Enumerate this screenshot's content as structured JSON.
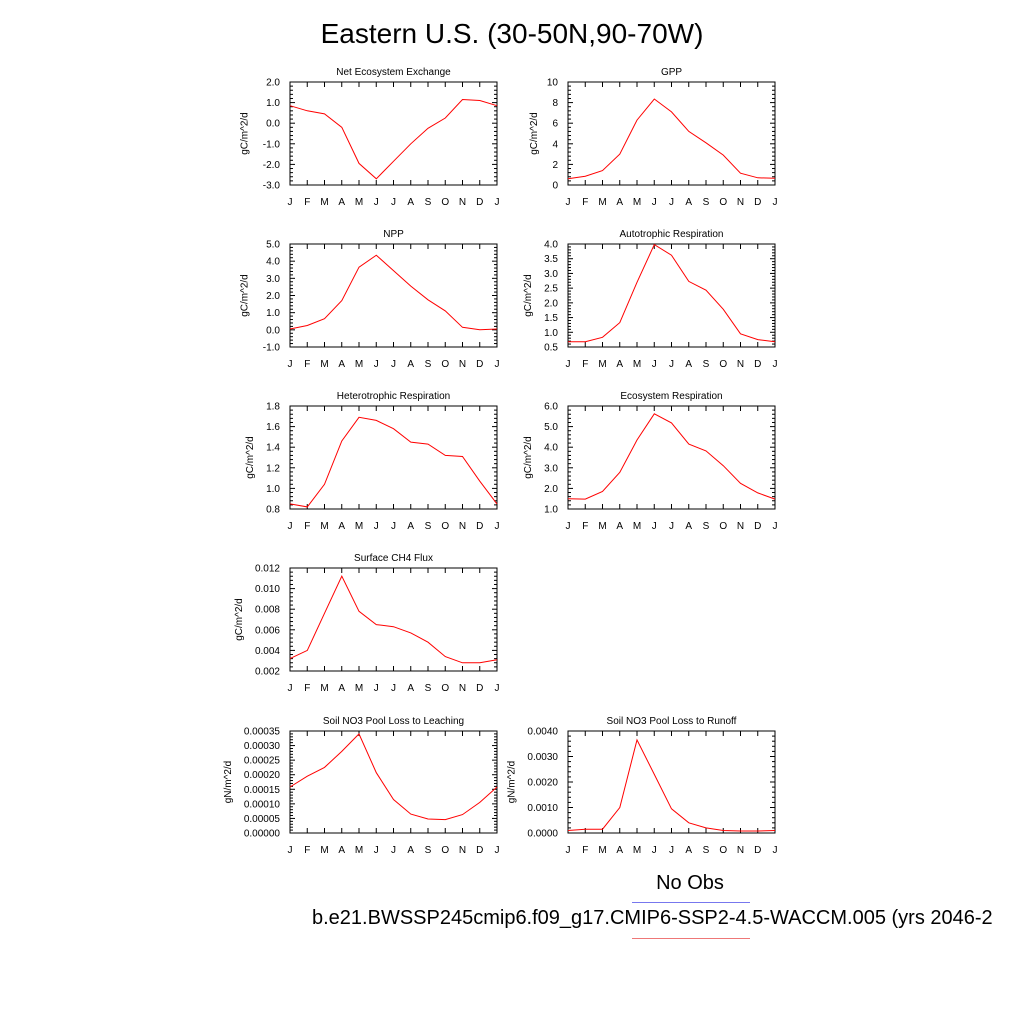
{
  "title": "Eastern U.S. (30-50N,90-70W)",
  "legend": {
    "obs_label": "No Obs",
    "case_label": "b.e21.BWSSP245cmip6.f09_g17.CMIP6-SSP2-4.5-WACCM.005 (yrs 2046-2",
    "obs_color": "#7777ee",
    "case_color": "#ee7777"
  },
  "chart_data": [
    {
      "type": "line",
      "title": "Net Ecosystem Exchange",
      "ylabel": "gC/m^2/d",
      "categories": [
        "J",
        "F",
        "M",
        "A",
        "M",
        "J",
        "J",
        "A",
        "S",
        "O",
        "N",
        "D",
        "J"
      ],
      "ylim": [
        -3.0,
        2.0
      ],
      "yticks": [
        "-3.0",
        "-2.0",
        "-1.0",
        "0.0",
        "1.0",
        "2.0"
      ],
      "series": [
        {
          "values": [
            0.85,
            0.6,
            0.45,
            -0.2,
            -1.95,
            -2.7,
            -1.85,
            -1.0,
            -0.25,
            0.25,
            1.15,
            1.1,
            0.85
          ],
          "color": "#ff0000"
        }
      ]
    },
    {
      "type": "line",
      "title": "GPP",
      "ylabel": "gC/m^2/d",
      "categories": [
        "J",
        "F",
        "M",
        "A",
        "M",
        "J",
        "J",
        "A",
        "S",
        "O",
        "N",
        "D",
        "J"
      ],
      "ylim": [
        0,
        10
      ],
      "yticks": [
        "0",
        "2",
        "4",
        "6",
        "8",
        "10"
      ],
      "series": [
        {
          "values": [
            0.6,
            0.85,
            1.4,
            3.0,
            6.3,
            8.35,
            7.1,
            5.2,
            4.1,
            2.9,
            1.15,
            0.7,
            0.65
          ],
          "color": "#ff0000"
        }
      ]
    },
    {
      "type": "line",
      "title": "NPP",
      "ylabel": "gC/m^2/d",
      "categories": [
        "J",
        "F",
        "M",
        "A",
        "M",
        "J",
        "J",
        "A",
        "S",
        "O",
        "N",
        "D",
        "J"
      ],
      "ylim": [
        -1.0,
        5.0
      ],
      "yticks": [
        "-1.0",
        "0.0",
        "1.0",
        "2.0",
        "3.0",
        "4.0",
        "5.0"
      ],
      "series": [
        {
          "values": [
            0.05,
            0.25,
            0.65,
            1.7,
            3.65,
            4.35,
            3.45,
            2.55,
            1.75,
            1.1,
            0.15,
            0.0,
            0.05
          ],
          "color": "#ff0000"
        }
      ]
    },
    {
      "type": "line",
      "title": "Autotrophic Respiration",
      "ylabel": "gC/m^2/d",
      "categories": [
        "J",
        "F",
        "M",
        "A",
        "M",
        "J",
        "J",
        "A",
        "S",
        "O",
        "N",
        "D",
        "J"
      ],
      "ylim": [
        0.5,
        4.0
      ],
      "yticks": [
        "0.5",
        "1.0",
        "1.5",
        "2.0",
        "2.5",
        "3.0",
        "3.5",
        "4.0"
      ],
      "series": [
        {
          "values": [
            0.68,
            0.68,
            0.83,
            1.33,
            2.7,
            3.98,
            3.62,
            2.73,
            2.43,
            1.78,
            0.95,
            0.75,
            0.68
          ],
          "color": "#ff0000"
        }
      ]
    },
    {
      "type": "line",
      "title": "Heterotrophic Respiration",
      "ylabel": "gC/m^2/d",
      "categories": [
        "J",
        "F",
        "M",
        "A",
        "M",
        "J",
        "J",
        "A",
        "S",
        "O",
        "N",
        "D",
        "J"
      ],
      "ylim": [
        0.8,
        1.8
      ],
      "yticks": [
        "0.8",
        "1.0",
        "1.2",
        "1.4",
        "1.6",
        "1.8"
      ],
      "series": [
        {
          "values": [
            0.85,
            0.82,
            1.04,
            1.46,
            1.69,
            1.66,
            1.58,
            1.45,
            1.43,
            1.32,
            1.31,
            1.07,
            0.85
          ],
          "color": "#ff0000"
        }
      ]
    },
    {
      "type": "line",
      "title": "Ecosystem Respiration",
      "ylabel": "gC/m^2/d",
      "categories": [
        "J",
        "F",
        "M",
        "A",
        "M",
        "J",
        "J",
        "A",
        "S",
        "O",
        "N",
        "D",
        "J"
      ],
      "ylim": [
        1.0,
        6.0
      ],
      "yticks": [
        "1.0",
        "2.0",
        "3.0",
        "4.0",
        "5.0",
        "6.0"
      ],
      "series": [
        {
          "values": [
            1.5,
            1.48,
            1.85,
            2.78,
            4.35,
            5.62,
            5.18,
            4.15,
            3.82,
            3.1,
            2.25,
            1.78,
            1.48
          ],
          "color": "#ff0000"
        }
      ]
    },
    {
      "type": "line",
      "title": "Surface CH4 Flux",
      "ylabel": "gC/m^2/d",
      "categories": [
        "J",
        "F",
        "M",
        "A",
        "M",
        "J",
        "J",
        "A",
        "S",
        "O",
        "N",
        "D",
        "J"
      ],
      "ylim": [
        0.002,
        0.012
      ],
      "yticks": [
        "0.002",
        "0.004",
        "0.006",
        "0.008",
        "0.010",
        "0.012"
      ],
      "series": [
        {
          "values": [
            0.0032,
            0.004,
            0.0076,
            0.0112,
            0.0078,
            0.0065,
            0.0063,
            0.0057,
            0.0048,
            0.0034,
            0.0028,
            0.0028,
            0.0031
          ],
          "color": "#ff0000"
        }
      ]
    },
    {
      "type": "line",
      "title": "Soil NO3 Pool Loss to Leaching",
      "ylabel": "gN/m^2/d",
      "categories": [
        "J",
        "F",
        "M",
        "A",
        "M",
        "J",
        "J",
        "A",
        "S",
        "O",
        "N",
        "D",
        "J"
      ],
      "ylim": [
        0,
        0.00035
      ],
      "yticks": [
        "0.00000",
        "0.00005",
        "0.00010",
        "0.00015",
        "0.00020",
        "0.00025",
        "0.00030",
        "0.00035"
      ],
      "series": [
        {
          "values": [
            0.000158,
            0.000195,
            0.000225,
            0.00028,
            0.00034,
            0.000207,
            0.000115,
            6.5e-05,
            4.8e-05,
            4.6e-05,
            6.3e-05,
            0.000105,
            0.000158
          ],
          "color": "#ff0000"
        }
      ]
    },
    {
      "type": "line",
      "title": "Soil NO3 Pool Loss to Runoff",
      "ylabel": "gN/m^2/d",
      "categories": [
        "J",
        "F",
        "M",
        "A",
        "M",
        "J",
        "J",
        "A",
        "S",
        "O",
        "N",
        "D",
        "J"
      ],
      "ylim": [
        0,
        0.004
      ],
      "yticks": [
        "0.0000",
        "0.0010",
        "0.0020",
        "0.0030",
        "0.0040"
      ],
      "series": [
        {
          "values": [
            0.0001,
            0.00015,
            0.00015,
            0.001,
            0.00365,
            0.0023,
            0.00095,
            0.0004,
            0.0002,
            0.0001,
            8e-05,
            8e-05,
            0.0001
          ],
          "color": "#ff0000"
        }
      ]
    }
  ]
}
